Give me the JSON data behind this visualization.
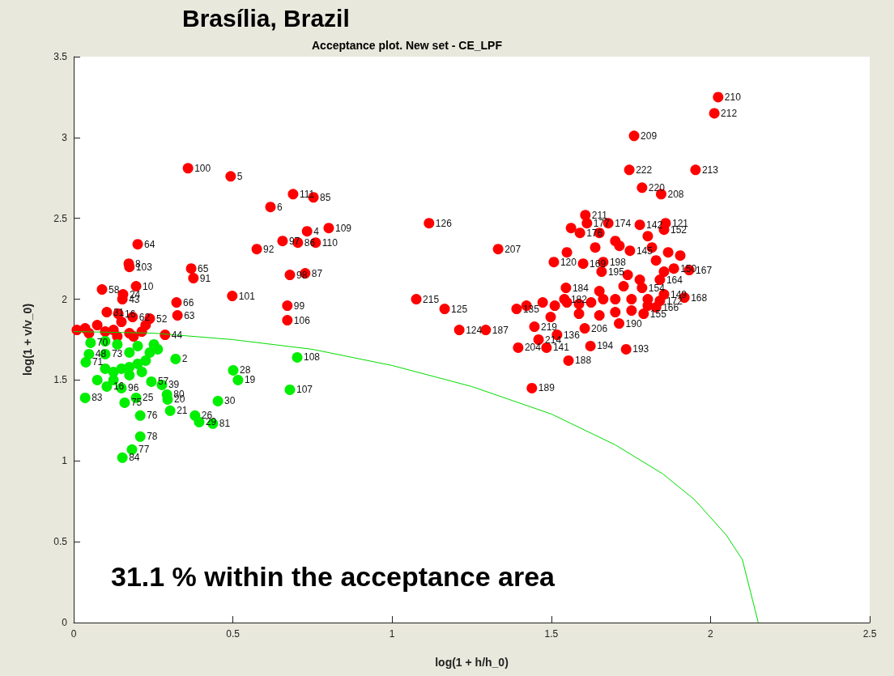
{
  "chart_data": {
    "type": "scatter",
    "title": "Brasília, Brazil",
    "subtitle": "Acceptance plot. New set - CE_LPF",
    "xlabel": "log(1 + h/h_0)",
    "ylabel": "log(1 + v/v_0)",
    "xlim": [
      0,
      2.5
    ],
    "ylim": [
      0,
      3.5
    ],
    "xticks": [
      0,
      0.5,
      1,
      1.5,
      2,
      2.5
    ],
    "yticks": [
      0,
      0.5,
      1,
      1.5,
      2,
      2.5,
      3,
      3.5
    ],
    "grid": false,
    "marker": "circle",
    "series": [
      {
        "type": "line",
        "marker": "none",
        "color": "#00dd00",
        "x": [
          0,
          0.25,
          0.5,
          0.75,
          1,
          1.25,
          1.5,
          1.7,
          1.85,
          1.95,
          2.05,
          2.1,
          2.15
        ],
        "values": [
          1.8,
          1.79,
          1.75,
          1.69,
          1.59,
          1.46,
          1.29,
          1.1,
          0.92,
          0.76,
          0.54,
          0.39,
          0
        ]
      },
      {
        "color": "#ff0000",
        "x": [
          0.359,
          0.493,
          0.618,
          0.689,
          0.753,
          0.733,
          0.801,
          0.656,
          0.704,
          0.76,
          0.575,
          0.679,
          0.727,
          0.369,
          0.376,
          0.498,
          0.671,
          0.671,
          0.323,
          0.326,
          0.239,
          0.287,
          0.201,
          0.173,
          0.175,
          0.196,
          0.089,
          0.155,
          0.153,
          0.104,
          0.14,
          0.185,
          0.01,
          0.036,
          0.074,
          0.125,
          0.175,
          0.214,
          0.226,
          0.15,
          0.099,
          0.048,
          0.137,
          0.188,
          1.116,
          1.333,
          1.076,
          1.165,
          1.211,
          1.294,
          1.439,
          1.396,
          1.485,
          1.46,
          1.518,
          1.447,
          1.554,
          1.623,
          1.735,
          1.605,
          1.713,
          1.918,
          1.933,
          1.508,
          1.546,
          1.6,
          1.541,
          1.391,
          1.76,
          2.024,
          2.012,
          1.745,
          1.953,
          1.785,
          1.845,
          1.607,
          1.612,
          1.679,
          1.59,
          1.778,
          1.859,
          1.854,
          1.747,
          1.663,
          1.658,
          1.841,
          1.885,
          1.785,
          1.854,
          1.841,
          1.829,
          1.79,
          1.549,
          1.587,
          1.625,
          1.663,
          1.701,
          1.752,
          1.803,
          1.587,
          1.651,
          1.701,
          1.752,
          1.803,
          1.651,
          1.727,
          1.778,
          1.829,
          1.867,
          1.905,
          1.816,
          1.714,
          1.638,
          1.549,
          1.562,
          1.651,
          1.701,
          1.803,
          1.74,
          1.854,
          1.422,
          1.473,
          1.511,
          1.498
        ],
        "values": [
          2.81,
          2.76,
          2.57,
          2.65,
          2.63,
          2.42,
          2.44,
          2.36,
          2.35,
          2.35,
          2.31,
          2.15,
          2.16,
          2.19,
          2.13,
          2.02,
          1.96,
          1.87,
          1.98,
          1.9,
          1.88,
          1.78,
          2.34,
          2.22,
          2.2,
          2.08,
          2.06,
          2.03,
          2,
          1.92,
          1.91,
          1.89,
          1.81,
          1.82,
          1.84,
          1.81,
          1.79,
          1.8,
          1.84,
          1.86,
          1.8,
          1.79,
          1.77,
          1.77,
          2.47,
          2.31,
          2,
          1.94,
          1.81,
          1.81,
          1.45,
          1.7,
          1.7,
          1.75,
          1.78,
          1.83,
          1.62,
          1.71,
          1.69,
          1.82,
          1.85,
          2.01,
          2.18,
          2.23,
          2.07,
          2.22,
          2,
          1.94,
          3.01,
          3.25,
          3.15,
          2.8,
          2.8,
          2.69,
          2.65,
          2.52,
          2.47,
          2.47,
          2.41,
          2.46,
          2.47,
          2.43,
          2.3,
          2.23,
          2.17,
          2.12,
          2.19,
          2.07,
          2.03,
          1.99,
          1.95,
          1.91,
          1.98,
          1.97,
          1.98,
          2,
          2,
          2,
          2,
          1.91,
          1.9,
          1.92,
          1.93,
          1.96,
          2.05,
          2.08,
          2.12,
          2.24,
          2.29,
          2.27,
          2.32,
          2.33,
          2.32,
          2.29,
          2.44,
          2.41,
          2.36,
          2.39,
          2.15,
          2.17,
          1.96,
          1.98,
          1.96,
          1.89
        ]
      },
      {
        "color": "#00ee00",
        "x": [
          0.32,
          0.501,
          0.516,
          0.702,
          0.679,
          0.453,
          0.381,
          0.394,
          0.437,
          0.303,
          0.295,
          0.293,
          0.277,
          0.244,
          0.209,
          0.209,
          0.183,
          0.153,
          0.16,
          0.196,
          0.036,
          0.15,
          0.104,
          0.038,
          0.048,
          0.099,
          0.053,
          0.099,
          0.125,
          0.15,
          0.175,
          0.201,
          0.226,
          0.239,
          0.264,
          0.175,
          0.137,
          0.099,
          0.201,
          0.252,
          0.125,
          0.074,
          0.175,
          0.214
        ],
        "values": [
          1.63,
          1.56,
          1.5,
          1.64,
          1.44,
          1.37,
          1.28,
          1.24,
          1.23,
          1.31,
          1.38,
          1.41,
          1.47,
          1.49,
          1.28,
          1.15,
          1.07,
          1.02,
          1.36,
          1.39,
          1.39,
          1.45,
          1.46,
          1.61,
          1.66,
          1.66,
          1.73,
          1.57,
          1.55,
          1.57,
          1.58,
          1.6,
          1.62,
          1.67,
          1.69,
          1.67,
          1.72,
          1.74,
          1.71,
          1.72,
          1.5,
          1.5,
          1.53,
          1.55
        ]
      }
    ],
    "annotations": [
      "31.1 % within the acceptance area",
      {
        "text": "100",
        "x": 0.359,
        "y": 2.81
      },
      {
        "text": "5",
        "x": 0.493,
        "y": 2.76
      },
      {
        "text": "6",
        "x": 0.618,
        "y": 2.57
      },
      {
        "text": "111",
        "x": 0.689,
        "y": 2.65
      },
      {
        "text": "85",
        "x": 0.753,
        "y": 2.63
      },
      {
        "text": "4",
        "x": 0.733,
        "y": 2.42
      },
      {
        "text": "109",
        "x": 0.801,
        "y": 2.44
      },
      {
        "text": "97",
        "x": 0.656,
        "y": 2.36
      },
      {
        "text": "86",
        "x": 0.704,
        "y": 2.35
      },
      {
        "text": "110",
        "x": 0.76,
        "y": 2.35
      },
      {
        "text": "92",
        "x": 0.575,
        "y": 2.31
      },
      {
        "text": "98",
        "x": 0.679,
        "y": 2.15
      },
      {
        "text": "87",
        "x": 0.727,
        "y": 2.16
      },
      {
        "text": "65",
        "x": 0.369,
        "y": 2.19
      },
      {
        "text": "91",
        "x": 0.376,
        "y": 2.13
      },
      {
        "text": "101",
        "x": 0.498,
        "y": 2.02
      },
      {
        "text": "99",
        "x": 0.671,
        "y": 1.96
      },
      {
        "text": "106",
        "x": 0.671,
        "y": 1.87
      },
      {
        "text": "66",
        "x": 0.323,
        "y": 1.98
      },
      {
        "text": "63",
        "x": 0.326,
        "y": 1.9
      },
      {
        "text": "52",
        "x": 0.239,
        "y": 1.88
      },
      {
        "text": "44",
        "x": 0.287,
        "y": 1.78
      },
      {
        "text": "64",
        "x": 0.201,
        "y": 2.34
      },
      {
        "text": "8",
        "x": 0.173,
        "y": 2.22
      },
      {
        "text": "103",
        "x": 0.175,
        "y": 2.2
      },
      {
        "text": "10",
        "x": 0.196,
        "y": 2.08
      },
      {
        "text": "58",
        "x": 0.089,
        "y": 2.06
      },
      {
        "text": "24",
        "x": 0.155,
        "y": 2.03
      },
      {
        "text": "43",
        "x": 0.153,
        "y": 2
      },
      {
        "text": "31",
        "x": 0.104,
        "y": 1.92
      },
      {
        "text": "16",
        "x": 0.14,
        "y": 1.91
      },
      {
        "text": "62",
        "x": 0.185,
        "y": 1.89
      },
      {
        "text": "126",
        "x": 1.116,
        "y": 2.47
      },
      {
        "text": "207",
        "x": 1.333,
        "y": 2.31
      },
      {
        "text": "215",
        "x": 1.076,
        "y": 2
      },
      {
        "text": "125",
        "x": 1.165,
        "y": 1.94
      },
      {
        "text": "124",
        "x": 1.211,
        "y": 1.81
      },
      {
        "text": "187",
        "x": 1.294,
        "y": 1.81
      },
      {
        "text": "189",
        "x": 1.439,
        "y": 1.45
      },
      {
        "text": "204",
        "x": 1.396,
        "y": 1.7
      },
      {
        "text": "141",
        "x": 1.485,
        "y": 1.7
      },
      {
        "text": "214",
        "x": 1.46,
        "y": 1.75
      },
      {
        "text": "136",
        "x": 1.518,
        "y": 1.78
      },
      {
        "text": "219",
        "x": 1.447,
        "y": 1.83
      },
      {
        "text": "188",
        "x": 1.554,
        "y": 1.62
      },
      {
        "text": "194",
        "x": 1.623,
        "y": 1.71
      },
      {
        "text": "193",
        "x": 1.735,
        "y": 1.69
      },
      {
        "text": "206",
        "x": 1.605,
        "y": 1.82
      },
      {
        "text": "190",
        "x": 1.713,
        "y": 1.85
      },
      {
        "text": "168",
        "x": 1.918,
        "y": 2.01
      },
      {
        "text": "167",
        "x": 1.933,
        "y": 2.18
      },
      {
        "text": "120",
        "x": 1.508,
        "y": 2.23
      },
      {
        "text": "184",
        "x": 1.546,
        "y": 2.07
      },
      {
        "text": "169",
        "x": 1.6,
        "y": 2.22
      },
      {
        "text": "182",
        "x": 1.541,
        "y": 2
      },
      {
        "text": "135",
        "x": 1.391,
        "y": 1.94
      },
      {
        "text": "209",
        "x": 1.76,
        "y": 3.01
      },
      {
        "text": "210",
        "x": 2.024,
        "y": 3.25
      },
      {
        "text": "212",
        "x": 2.012,
        "y": 3.15
      },
      {
        "text": "222",
        "x": 1.745,
        "y": 2.8
      },
      {
        "text": "213",
        "x": 1.953,
        "y": 2.8
      },
      {
        "text": "220",
        "x": 1.785,
        "y": 2.69
      },
      {
        "text": "208",
        "x": 1.845,
        "y": 2.65
      },
      {
        "text": "211",
        "x": 1.607,
        "y": 2.52
      },
      {
        "text": "177",
        "x": 1.612,
        "y": 2.47
      },
      {
        "text": "174",
        "x": 1.679,
        "y": 2.47
      },
      {
        "text": "176",
        "x": 1.59,
        "y": 2.41
      },
      {
        "text": "142",
        "x": 1.778,
        "y": 2.46
      },
      {
        "text": "121",
        "x": 1.859,
        "y": 2.47
      },
      {
        "text": "152",
        "x": 1.854,
        "y": 2.43
      },
      {
        "text": "145",
        "x": 1.747,
        "y": 2.3
      },
      {
        "text": "198",
        "x": 1.663,
        "y": 2.23
      },
      {
        "text": "195",
        "x": 1.658,
        "y": 2.17
      },
      {
        "text": "164",
        "x": 1.841,
        "y": 2.12
      },
      {
        "text": "150",
        "x": 1.885,
        "y": 2.19
      },
      {
        "text": "154",
        "x": 1.785,
        "y": 2.07
      },
      {
        "text": "149",
        "x": 1.854,
        "y": 2.03
      },
      {
        "text": "172",
        "x": 1.841,
        "y": 1.99
      },
      {
        "text": "166",
        "x": 1.829,
        "y": 1.95
      },
      {
        "text": "155",
        "x": 1.79,
        "y": 1.91
      },
      {
        "text": "2",
        "x": 0.32,
        "y": 1.63
      },
      {
        "text": "28",
        "x": 0.501,
        "y": 1.56
      },
      {
        "text": "19",
        "x": 0.516,
        "y": 1.5
      },
      {
        "text": "108",
        "x": 0.702,
        "y": 1.64
      },
      {
        "text": "107",
        "x": 0.679,
        "y": 1.44
      },
      {
        "text": "30",
        "x": 0.453,
        "y": 1.37
      },
      {
        "text": "26",
        "x": 0.381,
        "y": 1.28
      },
      {
        "text": "29",
        "x": 0.394,
        "y": 1.24
      },
      {
        "text": "81",
        "x": 0.437,
        "y": 1.23
      },
      {
        "text": "21",
        "x": 0.303,
        "y": 1.31
      },
      {
        "text": "20",
        "x": 0.295,
        "y": 1.38
      },
      {
        "text": "80",
        "x": 0.293,
        "y": 1.41
      },
      {
        "text": "39",
        "x": 0.277,
        "y": 1.47
      },
      {
        "text": "57",
        "x": 0.244,
        "y": 1.49
      },
      {
        "text": "76",
        "x": 0.209,
        "y": 1.28
      },
      {
        "text": "78",
        "x": 0.209,
        "y": 1.15
      },
      {
        "text": "77",
        "x": 0.183,
        "y": 1.07
      },
      {
        "text": "84",
        "x": 0.153,
        "y": 1.02
      },
      {
        "text": "75",
        "x": 0.16,
        "y": 1.36
      },
      {
        "text": "25",
        "x": 0.196,
        "y": 1.39
      },
      {
        "text": "83",
        "x": 0.036,
        "y": 1.39
      },
      {
        "text": "96",
        "x": 0.15,
        "y": 1.45
      },
      {
        "text": "16",
        "x": 0.104,
        "y": 1.46
      },
      {
        "text": "71",
        "x": 0.038,
        "y": 1.61
      },
      {
        "text": "48",
        "x": 0.048,
        "y": 1.66
      },
      {
        "text": "73",
        "x": 0.099,
        "y": 1.66
      },
      {
        "text": "70",
        "x": 0.053,
        "y": 1.73
      }
    ]
  }
}
